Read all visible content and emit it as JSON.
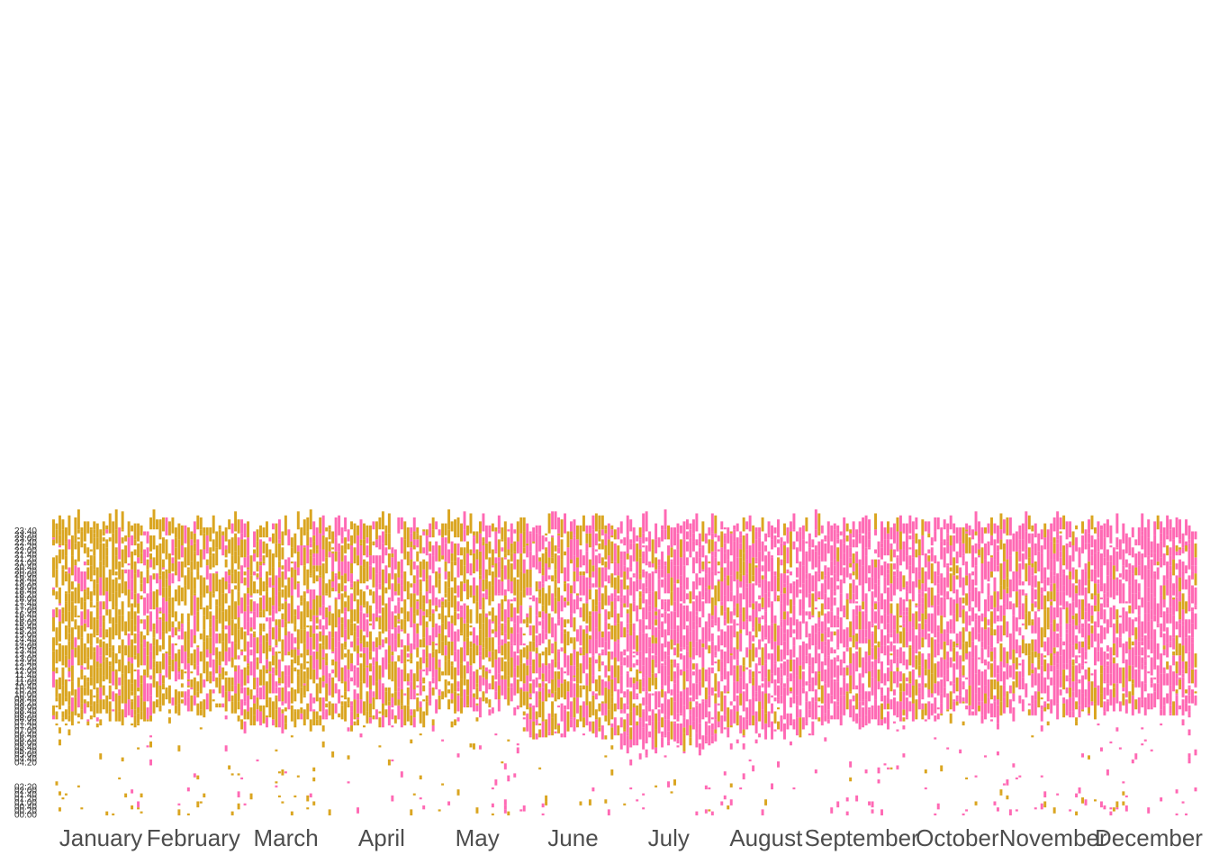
{
  "chart_data": {
    "type": "heatmap",
    "title": "",
    "xlabel": "",
    "ylabel": "",
    "x_axis": {
      "kind": "date",
      "range": [
        "2019-01-01",
        "2019-12-31"
      ],
      "tick_labels": [
        "January",
        "February",
        "March",
        "April",
        "May",
        "June",
        "July",
        "August",
        "September",
        "October",
        "November",
        "December"
      ]
    },
    "y_axis": {
      "kind": "time-of-day",
      "bin_minutes": 10,
      "range": [
        "00:00",
        "23:50"
      ],
      "tick_labels": [
        "00:00",
        "00:20",
        "00:40",
        "01:00",
        "01:20",
        "01:40",
        "02:00",
        "02:20",
        "04:20",
        "04:40",
        "05:00",
        "05:20",
        "05:40",
        "06:00",
        "06:20",
        "06:40",
        "07:00",
        "07:20",
        "07:40",
        "08:00",
        "08:20",
        "08:40",
        "09:00",
        "09:20",
        "09:40",
        "10:00",
        "10:20",
        "10:40",
        "11:00",
        "11:20",
        "11:40",
        "12:00",
        "12:20",
        "12:40",
        "13:00",
        "13:20",
        "13:40",
        "14:00",
        "14:20",
        "14:40",
        "15:00",
        "15:20",
        "15:40",
        "16:00",
        "16:20",
        "16:40",
        "17:00",
        "17:20",
        "17:40",
        "18:00",
        "18:20",
        "18:40",
        "19:00",
        "19:20",
        "19:40",
        "20:00",
        "20:20",
        "20:40",
        "21:00",
        "21:20",
        "21:40",
        "22:00",
        "22:20",
        "22:40",
        "23:00",
        "23:20",
        "23:40"
      ]
    },
    "categories_colors": {
      "gold": "#DAA520",
      "pink": "#FF69B4"
    },
    "legend": "none",
    "grid": false,
    "approx_activity_by_month": [
      {
        "month": "January",
        "dominant": "gold",
        "mixed_pink": 0.12,
        "day_start": "08:00",
        "day_end": "23:59"
      },
      {
        "month": "February",
        "dominant": "gold",
        "mixed_pink": 0.3,
        "day_start": "09:00",
        "day_end": "23:59"
      },
      {
        "month": "March",
        "dominant": "gold",
        "mixed_pink": 0.4,
        "day_start": "07:40",
        "day_end": "23:59"
      },
      {
        "month": "April",
        "dominant": "gold",
        "mixed_pink": 0.45,
        "day_start": "08:00",
        "day_end": "23:59"
      },
      {
        "month": "May",
        "dominant": "gold",
        "mixed_pink": 0.5,
        "day_start": "09:00",
        "day_end": "23:59"
      },
      {
        "month": "June",
        "dominant": "pink",
        "mixed_pink": 0.6,
        "day_start": "07:00",
        "day_end": "23:59"
      },
      {
        "month": "July",
        "dominant": "pink",
        "mixed_pink": 0.8,
        "day_start": "06:00",
        "day_end": "23:59"
      },
      {
        "month": "August",
        "dominant": "pink",
        "mixed_pink": 0.9,
        "day_start": "07:00",
        "day_end": "23:59"
      },
      {
        "month": "September",
        "dominant": "pink",
        "mixed_pink": 0.85,
        "day_start": "08:00",
        "day_end": "23:59"
      },
      {
        "month": "October",
        "dominant": "pink",
        "mixed_pink": 0.75,
        "day_start": "08:20",
        "day_end": "23:59"
      },
      {
        "month": "November",
        "dominant": "pink",
        "mixed_pink": 0.8,
        "day_start": "08:40",
        "day_end": "23:59"
      },
      {
        "month": "December",
        "dominant": "pink",
        "mixed_pink": 0.85,
        "day_start": "09:00",
        "day_end": "23:59"
      }
    ]
  }
}
